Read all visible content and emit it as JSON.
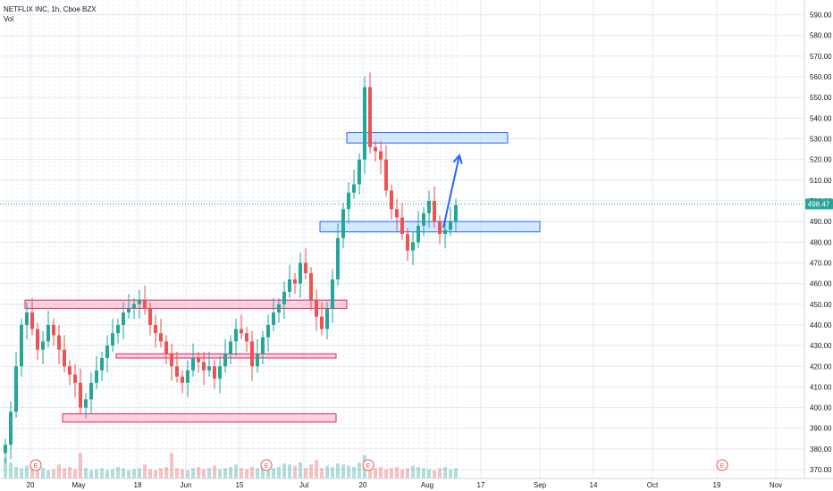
{
  "header": {
    "symbol_line": "NETFLIX INC, 1h, Cboe BZX",
    "volume_label": "Vol"
  },
  "price_tag": "498.47",
  "earnings_marker": "E",
  "colors": {
    "up": "#26a69a",
    "down": "#ef5350",
    "grid": "#e6e8ec",
    "blue_zone_fill": "#bbdefb",
    "blue_zone_stroke": "#2962ff",
    "red_zone_fill": "#f8bbd0",
    "red_zone_stroke": "#e91e63",
    "arrow": "#2962ff",
    "price_tag_bg": "#26a69a"
  },
  "chart_data": {
    "type": "candlestick",
    "title": "NETFLIX INC, 1h, Cboe BZX",
    "ylim": [
      367,
      595
    ],
    "y_ticks": [
      370,
      380,
      390,
      400,
      410,
      420,
      430,
      440,
      450,
      460,
      470,
      480,
      490,
      500,
      510,
      520,
      530,
      540,
      550,
      560,
      570,
      580,
      590
    ],
    "x_ticks": [
      {
        "label": "20",
        "index": 5
      },
      {
        "label": "May",
        "index": 14
      },
      {
        "label": "18",
        "index": 25
      },
      {
        "label": "Jun",
        "index": 34
      },
      {
        "label": "15",
        "index": 44
      },
      {
        "label": "Jul",
        "index": 56
      },
      {
        "label": "20",
        "index": 67
      },
      {
        "label": "Aug",
        "index": 79
      },
      {
        "label": "17",
        "index": 89
      },
      {
        "label": "Sep",
        "index": 100
      },
      {
        "label": "14",
        "index": 110
      },
      {
        "label": "Oct",
        "index": 121
      },
      {
        "label": "19",
        "index": 133
      },
      {
        "label": "Nov",
        "index": 144
      }
    ],
    "last_price": 498.47,
    "closes": [
      382,
      398,
      420,
      440,
      446,
      438,
      428,
      432,
      440,
      435,
      428,
      420,
      416,
      412,
      400,
      404,
      412,
      418,
      424,
      430,
      436,
      440,
      446,
      448,
      450,
      452,
      448,
      440,
      436,
      432,
      426,
      420,
      415,
      412,
      418,
      424,
      422,
      418,
      420,
      414,
      420,
      426,
      432,
      438,
      436,
      432,
      420,
      426,
      434,
      440,
      446,
      450,
      456,
      462,
      460,
      470,
      465,
      452,
      444,
      438,
      448,
      462,
      482,
      496,
      504,
      508,
      520,
      555,
      526,
      524,
      520,
      505,
      496,
      492,
      484,
      476,
      480,
      488,
      494,
      500,
      490,
      484,
      486,
      490,
      498
    ],
    "volume": [
      18,
      14,
      10,
      9,
      11,
      8,
      13,
      9,
      7,
      8,
      12,
      9,
      10,
      8,
      22,
      9,
      7,
      8,
      9,
      7,
      8,
      10,
      9,
      7,
      8,
      9,
      12,
      8,
      7,
      9,
      10,
      22,
      9,
      8,
      7,
      9,
      10,
      8,
      9,
      11,
      8,
      9,
      10,
      12,
      9,
      8,
      10,
      9,
      11,
      12,
      9,
      10,
      13,
      12,
      11,
      14,
      9,
      12,
      16,
      9,
      11,
      10,
      13,
      12,
      11,
      10,
      14,
      20,
      11,
      9,
      10,
      8,
      9,
      10,
      8,
      9,
      11,
      10,
      9,
      8,
      7,
      9,
      10,
      8,
      9
    ],
    "earnings_markers_at_index": [
      6,
      49,
      68,
      134
    ],
    "zones": [
      {
        "label": "",
        "color": "blue",
        "y_top": 533,
        "y_bottom": 528,
        "x_start_index": 64,
        "x_end_index": 94
      },
      {
        "label": "",
        "color": "blue",
        "y_top": 490,
        "y_bottom": 485,
        "x_start_index": 59,
        "x_end_index": 100
      },
      {
        "label": "",
        "color": "red",
        "y_top": 452,
        "y_bottom": 448,
        "x_start_index": 4,
        "x_end_index": 64
      },
      {
        "label": "",
        "color": "red",
        "y_top": 426,
        "y_bottom": 424,
        "x_start_index": 21,
        "x_end_index": 62
      },
      {
        "label": "",
        "color": "red",
        "y_top": 397,
        "y_bottom": 393,
        "x_start_index": 11,
        "x_end_index": 62
      }
    ],
    "arrow": {
      "from_index": 82,
      "from_price": 487,
      "to_index": 85,
      "to_price": 522
    },
    "grid": true,
    "legend": "none"
  }
}
